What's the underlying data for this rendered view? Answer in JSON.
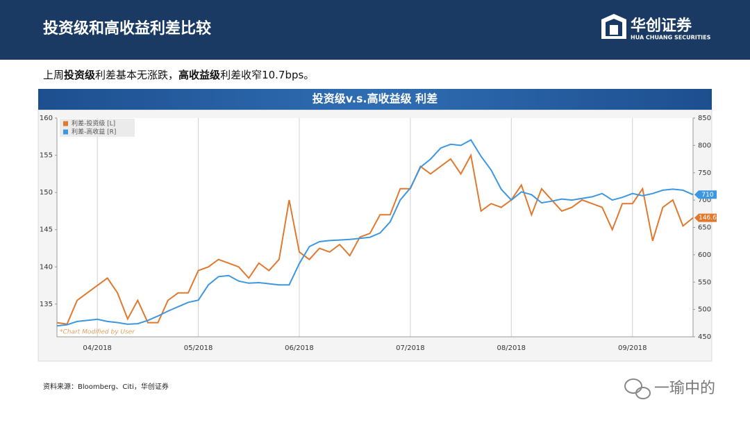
{
  "header": {
    "title": "投资级和高收益利差比较",
    "logo_name": "华创证券",
    "logo_en": "HUA CHUANG SECURITIES"
  },
  "summary": [
    {
      "text": "上周",
      "bold": false
    },
    {
      "text": "投资级",
      "bold": true
    },
    {
      "text": "利差基本无涨跌，",
      "bold": false
    },
    {
      "text": "高收益级",
      "bold": true
    },
    {
      "text": "利差收窄10.7bps。",
      "bold": false
    }
  ],
  "source": "资料来源：Bloomberg、Citi，华创证券",
  "watermark": "一瑜中的",
  "chart_data": {
    "type": "line",
    "title": "投资级v.s.高收益级 利差",
    "annotation": "*Chart Modified by User",
    "categories": [
      null,
      null,
      null,
      null,
      "04/2018",
      null,
      null,
      null,
      null,
      null,
      null,
      null,
      null,
      null,
      "05/2018",
      null,
      null,
      null,
      null,
      null,
      null,
      null,
      null,
      null,
      "06/2018",
      null,
      null,
      null,
      null,
      null,
      null,
      null,
      null,
      null,
      null,
      "07/2018",
      null,
      null,
      null,
      null,
      null,
      null,
      null,
      null,
      null,
      "08/2018",
      null,
      null,
      null,
      null,
      null,
      null,
      null,
      null,
      null,
      null,
      null,
      "09/2018",
      null,
      null,
      null,
      null,
      null,
      null
    ],
    "series": [
      {
        "name": "利差-投资级 [L]",
        "color": "#e0782e",
        "axis": "y",
        "values": [
          132.5,
          132.3,
          135.5,
          136.5,
          137.5,
          138.5,
          136.5,
          133,
          135.5,
          132.5,
          132.5,
          135.5,
          136.5,
          136.5,
          139.5,
          140,
          141,
          140.5,
          140,
          138.5,
          140.5,
          139.5,
          141,
          149,
          142,
          141,
          142.5,
          142,
          143,
          141.5,
          144,
          144.5,
          147,
          147,
          150.5,
          150.5,
          153.5,
          152.5,
          153.5,
          154.5,
          152.5,
          155,
          147.5,
          148.5,
          148,
          149,
          151,
          147,
          150.5,
          149,
          147.5,
          148,
          149,
          148.5,
          148,
          145,
          148.5,
          148.5,
          150.5,
          143.5,
          148,
          149,
          145.5,
          146.6
        ]
      },
      {
        "name": "利差-高收益 [R]",
        "color": "#3d96e0",
        "axis": "y2",
        "values": [
          470,
          472,
          478,
          480,
          482,
          478,
          476,
          473,
          474,
          480,
          488,
          497,
          505,
          513,
          517,
          545,
          560,
          562,
          552,
          548,
          549,
          547,
          545,
          545,
          584,
          615,
          624,
          626,
          627,
          628,
          630,
          632,
          640,
          660,
          700,
          722,
          760,
          775,
          795,
          802,
          800,
          810,
          780,
          755,
          720,
          700,
          715,
          710,
          695,
          698,
          702,
          700,
          703,
          706,
          712,
          700,
          705,
          712,
          708,
          712,
          718,
          720,
          718,
          710
        ]
      }
    ],
    "ylim": [
      130.6,
      160
    ],
    "yticks": [
      135,
      140,
      145,
      150,
      155,
      160
    ],
    "y2lim": [
      450,
      850
    ],
    "y2ticks": [
      450,
      500,
      550,
      600,
      650,
      700,
      750,
      800,
      850
    ],
    "grid": "x",
    "legend": "upper left"
  }
}
